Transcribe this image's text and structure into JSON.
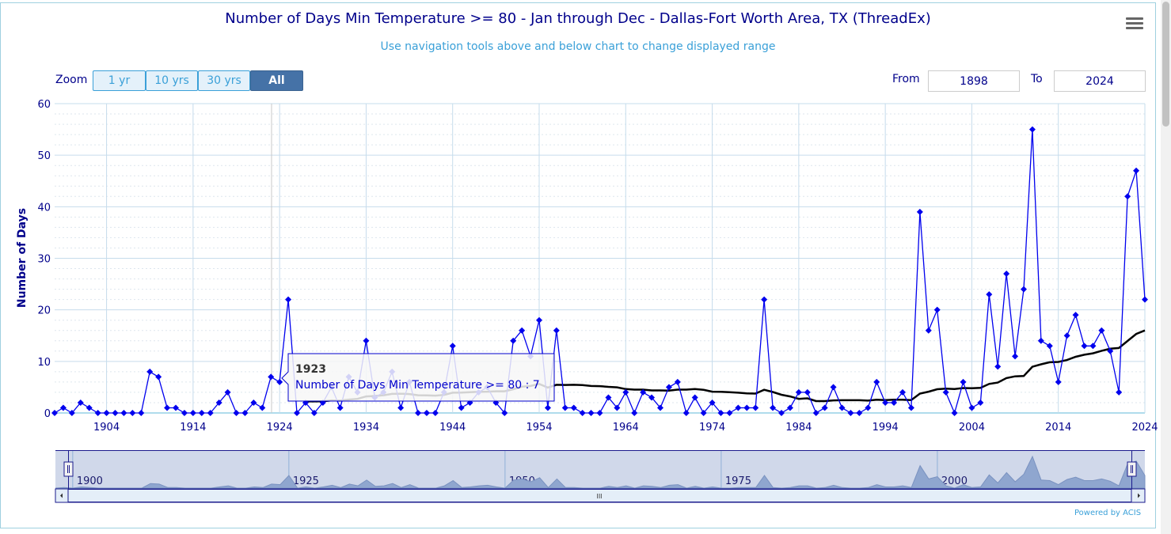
{
  "header": {
    "title": "Number of Days Min Temperature >= 80 - Jan through Dec - Dallas-Fort Worth Area, TX (ThreadEx)",
    "subtitle": "Use navigation tools above and below chart to change displayed range",
    "menu_icon": "hamburger-menu-icon"
  },
  "zoom": {
    "label": "Zoom",
    "buttons": [
      {
        "label": "1 yr",
        "selected": false
      },
      {
        "label": "10 yrs",
        "selected": false
      },
      {
        "label": "30 yrs",
        "selected": false
      },
      {
        "label": "All",
        "selected": true
      }
    ]
  },
  "range": {
    "from_label": "From",
    "from_value": "1898",
    "to_label": "To",
    "to_value": "2024"
  },
  "tooltip": {
    "year": "1923",
    "text": "Number of Days Min Temperature >= 80 : 7"
  },
  "navigator": {
    "labels": [
      "1900",
      "1925",
      "1950",
      "1975",
      "2000"
    ],
    "handle_glyph": "III"
  },
  "credit": "Powered by ACIS",
  "colors": {
    "series": "#0000ee",
    "mean": "#000000",
    "title": "#00008b",
    "accent": "#4572a7"
  },
  "chart_data": {
    "type": "line",
    "ylabel": "Number of Days",
    "xlabel": "",
    "xlim": [
      1898,
      2024
    ],
    "ylim": [
      0,
      60
    ],
    "yticks": [
      0,
      10,
      20,
      30,
      40,
      50,
      60
    ],
    "xticks": [
      1904,
      1914,
      1924,
      1934,
      1944,
      1954,
      1964,
      1974,
      1984,
      1994,
      2004,
      2014,
      2024
    ],
    "grid": true,
    "x_start": 1898,
    "series": [
      {
        "name": "Number of Days Min Temperature >= 80",
        "marker": "diamond",
        "values": [
          0,
          1,
          0,
          2,
          1,
          0,
          0,
          0,
          0,
          0,
          0,
          8,
          7,
          1,
          1,
          0,
          0,
          0,
          0,
          2,
          4,
          0,
          0,
          2,
          1,
          7,
          6,
          22,
          0,
          2,
          0,
          2,
          5,
          1,
          7,
          4,
          14,
          3,
          4,
          8,
          1,
          6,
          0,
          0,
          0,
          4,
          13,
          1,
          2,
          4,
          5,
          2,
          0,
          14,
          16,
          11,
          18,
          1,
          16,
          1,
          1,
          0,
          0,
          0,
          3,
          1,
          4,
          0,
          4,
          3,
          1,
          5,
          6,
          0,
          3,
          0,
          2,
          0,
          0,
          1,
          1,
          1,
          22,
          1,
          0,
          1,
          4,
          4,
          0,
          1,
          5,
          1,
          0,
          0,
          1,
          6,
          2,
          2,
          4,
          1,
          39,
          16,
          20,
          4,
          0,
          6,
          1,
          2,
          23,
          9,
          27,
          11,
          24,
          55,
          14,
          13,
          6,
          15,
          19,
          13,
          13,
          16,
          12,
          4,
          42,
          47,
          22
        ]
      },
      {
        "kind": "30-year running mean",
        "start_year": 1927
      }
    ]
  }
}
